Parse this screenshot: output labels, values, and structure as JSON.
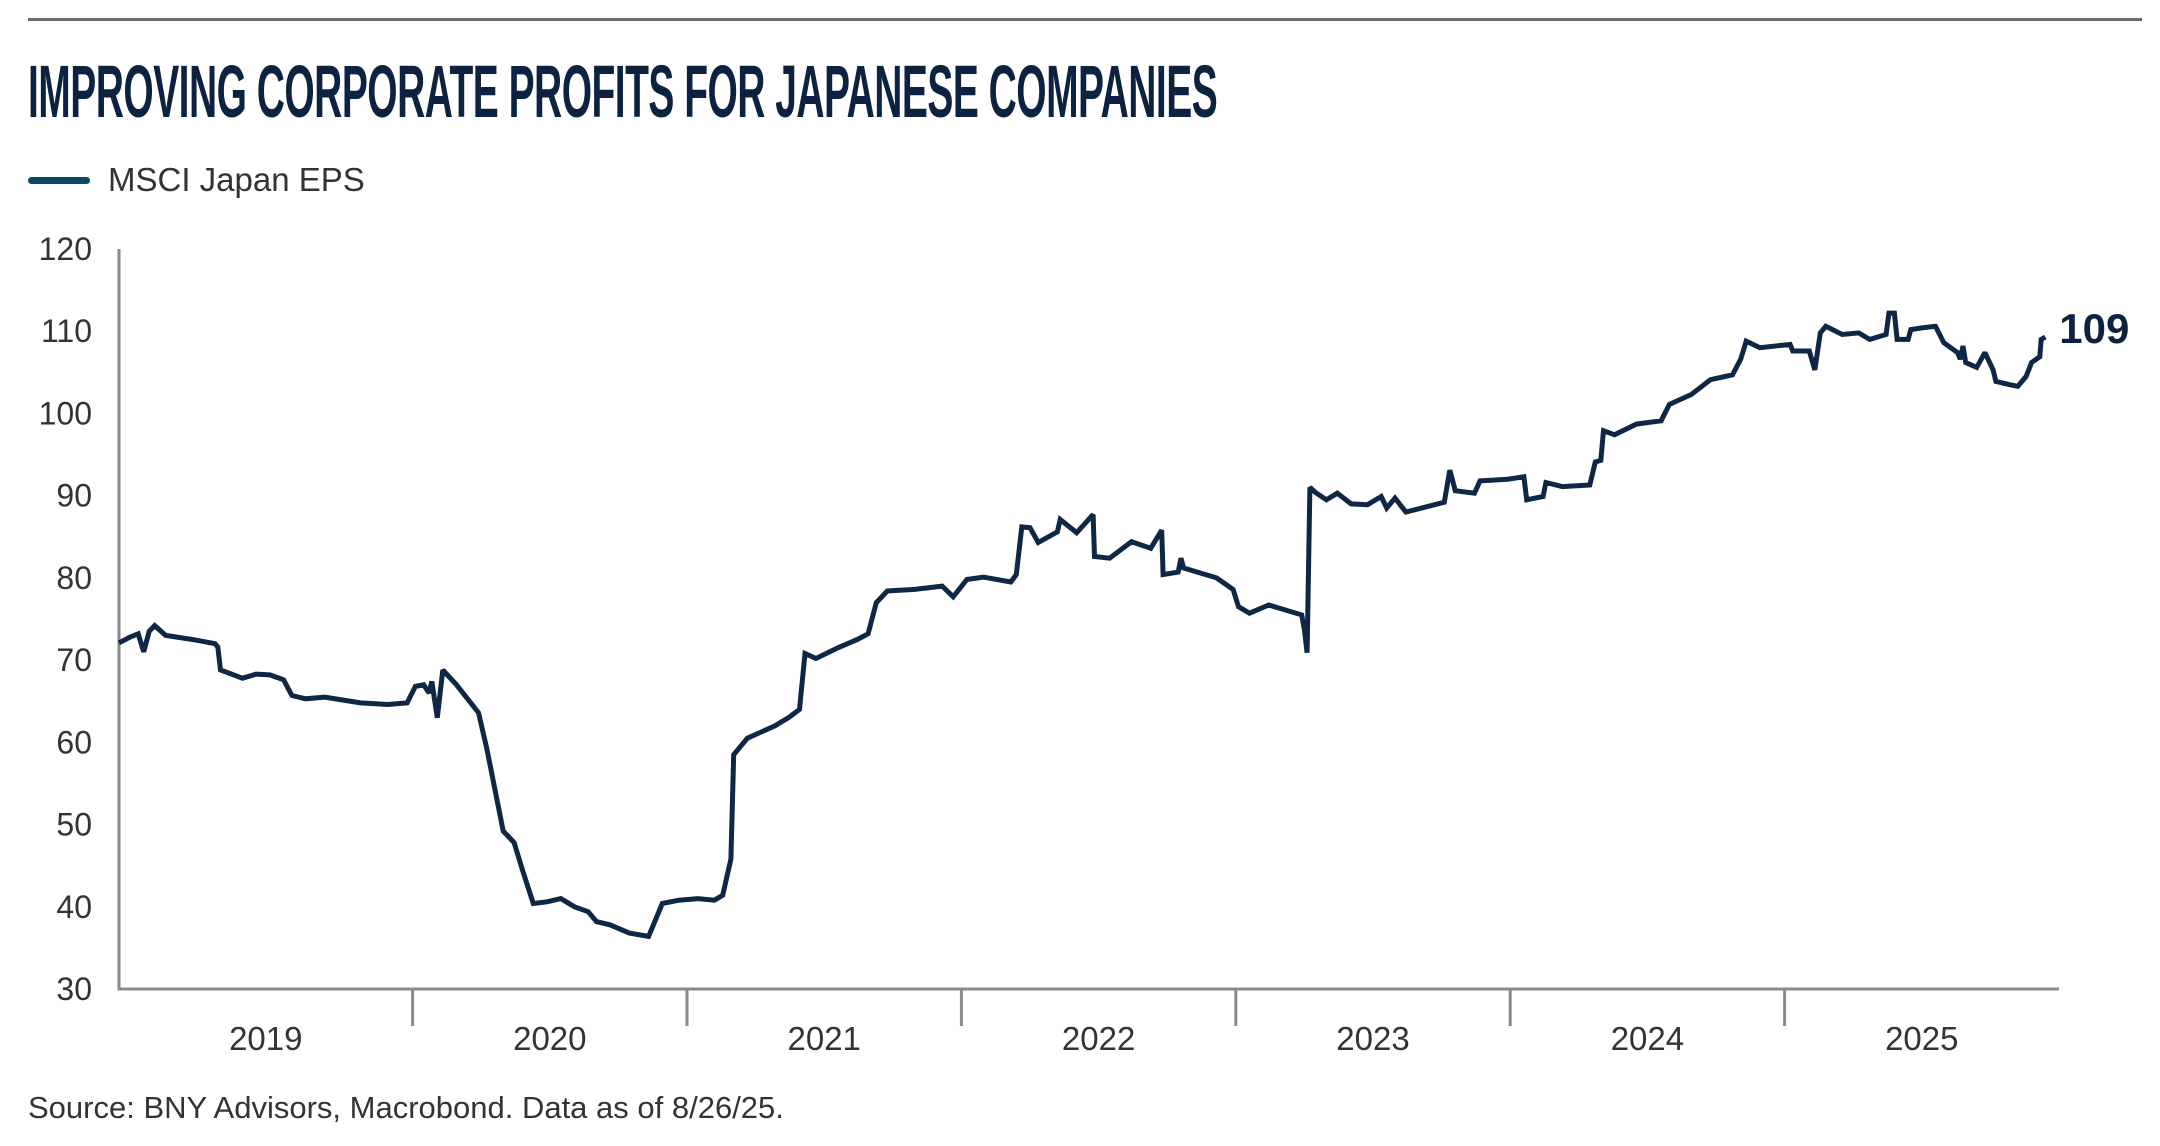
{
  "header": {
    "title": "IMPROVING CORPORATE PROFITS FOR JAPANESE COMPANIES"
  },
  "legend": {
    "items": [
      {
        "label": "MSCI Japan EPS",
        "color": "#0b4860"
      }
    ]
  },
  "footer": {
    "source": "Source: BNY Advisors, Macrobond. Data as of 8/26/25."
  },
  "chart_data": {
    "type": "line",
    "title": "IMPROVING CORPORATE PROFITS FOR JAPANESE COMPANIES",
    "xlabel": "",
    "ylabel": "",
    "ylim": [
      30,
      120
    ],
    "yticks": [
      30,
      40,
      50,
      60,
      70,
      80,
      90,
      100,
      110,
      120
    ],
    "ytick_labels": [
      "30",
      "40",
      "50",
      "60",
      "70",
      "80",
      "90",
      "100",
      "110",
      "120"
    ],
    "xlim": [
      2018.93,
      2026.0
    ],
    "x_tick_boundaries": [
      2020,
      2021,
      2022,
      2023,
      2024,
      2025
    ],
    "x_category_labels": [
      {
        "label": "2019",
        "from": 2018.93,
        "to": 2020
      },
      {
        "label": "2020",
        "from": 2020,
        "to": 2021
      },
      {
        "label": "2021",
        "from": 2021,
        "to": 2022
      },
      {
        "label": "2022",
        "from": 2022,
        "to": 2023
      },
      {
        "label": "2023",
        "from": 2023,
        "to": 2024
      },
      {
        "label": "2024",
        "from": 2024,
        "to": 2025
      },
      {
        "label": "2025",
        "from": 2025,
        "to": 2026.0
      }
    ],
    "grid": false,
    "legend_position": "top-left",
    "end_label": "109",
    "series": [
      {
        "name": "MSCI Japan EPS",
        "color": "#0d2744",
        "x": [
          2018.93,
          2018.97,
          2019.0,
          2019.02,
          2019.04,
          2019.06,
          2019.1,
          2019.2,
          2019.28,
          2019.29,
          2019.3,
          2019.38,
          2019.43,
          2019.48,
          2019.53,
          2019.56,
          2019.61,
          2019.68,
          2019.81,
          2019.91,
          2019.98,
          2020.01,
          2020.04,
          2020.06,
          2020.07,
          2020.09,
          2020.11,
          2020.16,
          2020.24,
          2020.27,
          2020.3,
          2020.33,
          2020.37,
          2020.4,
          2020.44,
          2020.49,
          2020.54,
          2020.59,
          2020.64,
          2020.67,
          2020.72,
          2020.79,
          2020.86,
          2020.88,
          2020.91,
          2020.97,
          2021.04,
          2021.1,
          2021.13,
          2021.16,
          2021.17,
          2021.22,
          2021.32,
          2021.37,
          2021.41,
          2021.43,
          2021.47,
          2021.55,
          2021.62,
          2021.66,
          2021.69,
          2021.73,
          2021.83,
          2021.93,
          2021.97,
          2022.02,
          2022.08,
          2022.18,
          2022.2,
          2022.22,
          2022.25,
          2022.28,
          2022.35,
          2022.36,
          2022.42,
          2022.48,
          2022.485,
          2022.54,
          2022.62,
          2022.69,
          2022.73,
          2022.735,
          2022.79,
          2022.8,
          2022.81,
          2022.93,
          2022.99,
          2023.01,
          2023.05,
          2023.12,
          2023.24,
          2023.25,
          2023.26,
          2023.27,
          2023.29,
          2023.33,
          2023.37,
          2023.42,
          2023.48,
          2023.53,
          2023.55,
          2023.58,
          2023.62,
          2023.76,
          2023.78,
          2023.8,
          2023.87,
          2023.89,
          2023.99,
          2024.05,
          2024.06,
          2024.12,
          2024.13,
          2024.19,
          2024.29,
          2024.31,
          2024.33,
          2024.34,
          2024.38,
          2024.46,
          2024.55,
          2024.58,
          2024.66,
          2024.73,
          2024.81,
          2024.84,
          2024.86,
          2024.91,
          2025.02,
          2025.03,
          2025.09,
          2025.11,
          2025.13,
          2025.15,
          2025.21,
          2025.27,
          2025.31,
          2025.37,
          2025.38,
          2025.4,
          2025.41,
          2025.45,
          2025.46,
          2025.5,
          2025.55,
          2025.58,
          2025.63,
          2025.64,
          2025.65,
          2025.66,
          2025.7,
          2025.73,
          2025.76,
          2025.77,
          2025.82,
          2025.85,
          2025.88,
          2025.9,
          2025.93,
          2025.935,
          2025.95
        ],
        "y": [
          72.1,
          72.8,
          73.2,
          71.0,
          73.5,
          74.2,
          73.0,
          72.5,
          72.0,
          71.6,
          68.8,
          67.8,
          68.3,
          68.2,
          67.6,
          65.7,
          65.3,
          65.5,
          64.8,
          64.6,
          64.8,
          66.8,
          67.0,
          66.0,
          67.4,
          63.0,
          68.8,
          67.0,
          63.6,
          59.3,
          54.3,
          49.2,
          47.8,
          44.5,
          40.4,
          40.6,
          41.0,
          40.0,
          39.4,
          38.2,
          37.8,
          36.8,
          36.4,
          38.0,
          40.4,
          40.8,
          41.0,
          40.8,
          41.4,
          45.8,
          58.5,
          60.5,
          62.0,
          63.0,
          64.0,
          70.8,
          70.2,
          71.5,
          72.5,
          73.2,
          77.0,
          78.4,
          78.6,
          79.0,
          77.7,
          79.8,
          80.1,
          79.5,
          80.4,
          86.2,
          86.1,
          84.3,
          85.6,
          87.1,
          85.5,
          87.7,
          82.6,
          82.4,
          84.4,
          83.6,
          85.8,
          80.4,
          80.7,
          82.4,
          81.2,
          80.0,
          78.6,
          76.5,
          75.7,
          76.7,
          75.5,
          73.7,
          70.9,
          91.0,
          90.4,
          89.5,
          90.3,
          89.0,
          88.9,
          89.9,
          88.5,
          89.7,
          88.0,
          89.2,
          93.1,
          90.6,
          90.3,
          91.8,
          92.0,
          92.3,
          89.5,
          89.9,
          91.6,
          91.1,
          91.3,
          94.1,
          94.3,
          97.9,
          97.4,
          98.7,
          99.1,
          101.1,
          102.3,
          104.1,
          104.7,
          106.6,
          108.8,
          108.0,
          108.4,
          107.6,
          107.6,
          105.3,
          109.8,
          110.6,
          109.6,
          109.8,
          109.0,
          109.6,
          112.2,
          112.2,
          109.0,
          109.0,
          110.2,
          110.4,
          110.6,
          108.6,
          107.4,
          106.6,
          108.2,
          106.2,
          105.6,
          107.4,
          105.3,
          103.9,
          103.5,
          103.3,
          104.5,
          106.2,
          106.9,
          109.0,
          109.3
        ]
      }
    ]
  }
}
